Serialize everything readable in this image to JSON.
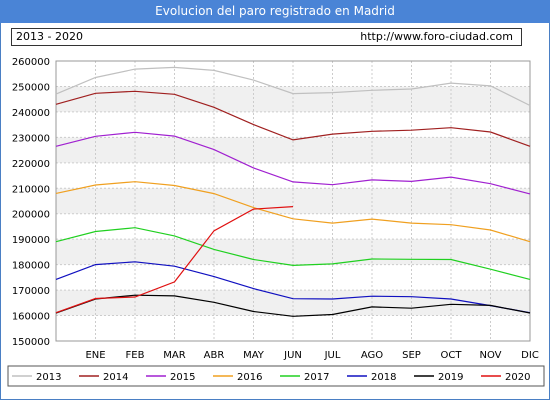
{
  "header": {
    "title": "Evolucion del paro registrado en Madrid",
    "range": "2013 - 2020",
    "url": "http://www.foro-ciudad.com"
  },
  "chart_data": {
    "type": "line",
    "title": "Evolucion del paro registrado en Madrid",
    "categories": [
      "",
      "ENE",
      "FEB",
      "MAR",
      "ABR",
      "MAY",
      "JUN",
      "JUL",
      "AGO",
      "SEP",
      "OCT",
      "NOV",
      "DIC"
    ],
    "ylim": [
      150000,
      260000
    ],
    "yticks": [
      150000,
      160000,
      170000,
      180000,
      190000,
      200000,
      210000,
      220000,
      230000,
      240000,
      250000,
      260000
    ],
    "grid": true,
    "legend_position": "bottom",
    "series": [
      {
        "name": "2013",
        "color": "#c0c0c0",
        "values": [
          247000,
          253500,
          256800,
          257500,
          256300,
          252500,
          247200,
          247600,
          248500,
          249000,
          251300,
          250200,
          242500
        ]
      },
      {
        "name": "2014",
        "color": "#a02020",
        "values": [
          243000,
          247300,
          248100,
          246900,
          241800,
          235000,
          229000,
          231300,
          232400,
          232800,
          233800,
          232100,
          226500
        ]
      },
      {
        "name": "2015",
        "color": "#a020d0",
        "values": [
          226500,
          230400,
          232000,
          230500,
          225200,
          218000,
          212500,
          211400,
          213300,
          212700,
          214400,
          211800,
          207800
        ]
      },
      {
        "name": "2016",
        "color": "#f0a020",
        "values": [
          208000,
          211300,
          212600,
          211100,
          207900,
          202400,
          198000,
          196300,
          197900,
          196300,
          195700,
          193600,
          189000
        ]
      },
      {
        "name": "2017",
        "color": "#20d020",
        "values": [
          189000,
          193000,
          194500,
          191300,
          186000,
          182000,
          179700,
          180300,
          182200,
          182100,
          182000,
          178200,
          174200
        ]
      },
      {
        "name": "2018",
        "color": "#1010c0",
        "values": [
          174200,
          180000,
          181100,
          179400,
          175300,
          170600,
          166600,
          166500,
          167600,
          167400,
          166500,
          163900,
          161100
        ]
      },
      {
        "name": "2019",
        "color": "#000000",
        "values": [
          161000,
          166500,
          168000,
          167700,
          165200,
          161600,
          159700,
          160400,
          163400,
          162900,
          164400,
          164000,
          161000
        ]
      },
      {
        "name": "2020",
        "color": "#e01010",
        "values": [
          161100,
          166700,
          167300,
          173200,
          193300,
          201800,
          202800,
          null,
          null,
          null,
          null,
          null,
          null
        ]
      }
    ]
  }
}
